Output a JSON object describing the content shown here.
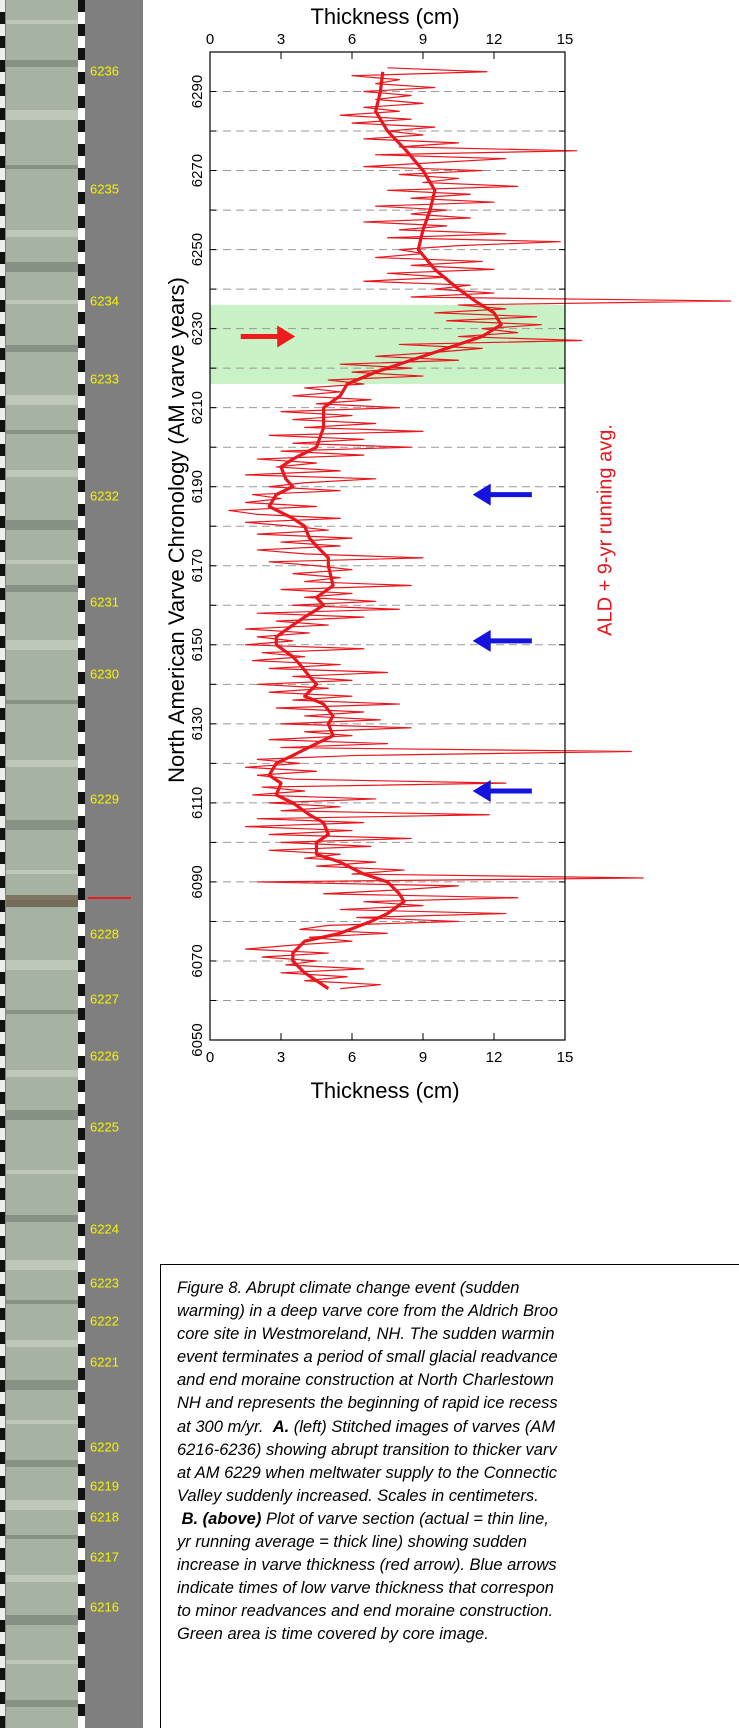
{
  "chart_data": {
    "type": "line",
    "title_top": "Thickness (cm)",
    "xlabel": "Thickness (cm)",
    "ylabel": "North American Varve Chronology (AM varve years)",
    "legend_text": "ALD + 9-yr running avg.",
    "xlim": [
      0,
      15
    ],
    "xticks": [
      0,
      3,
      6,
      9,
      12,
      15
    ],
    "ylim": [
      6050,
      6300
    ],
    "yticks": [
      6050,
      6070,
      6090,
      6110,
      6130,
      6150,
      6170,
      6190,
      6210,
      6230,
      6250,
      6270,
      6290
    ],
    "y_minor_ticks": [
      6060,
      6080,
      6100,
      6120,
      6140,
      6160,
      6180,
      6200,
      6220,
      6240,
      6260,
      6280
    ],
    "grid": true,
    "shaded_range": {
      "years": [
        6216,
        6236
      ],
      "color": "#c9f3c6"
    },
    "arrows": [
      {
        "year": 6228,
        "from": 1.3,
        "to": 3.6,
        "color": "#ee1c1c"
      },
      {
        "year": 6188,
        "from": 13.6,
        "to": 11.1,
        "color": "#1414dc"
      },
      {
        "year": 6151,
        "from": 13.6,
        "to": 11.1,
        "color": "#1414dc"
      },
      {
        "year": 6113,
        "from": 13.6,
        "to": 11.1,
        "color": "#1414dc"
      }
    ],
    "series": [
      {
        "color": "#e8171e",
        "line_width": 1.2,
        "years": [
          6063,
          6064,
          6065,
          6066,
          6067,
          6068,
          6069,
          6070,
          6071,
          6072,
          6073,
          6074,
          6075,
          6076,
          6077,
          6078,
          6079,
          6080,
          6081,
          6082,
          6083,
          6084,
          6085,
          6086,
          6087,
          6088,
          6089,
          6090,
          6091,
          6092,
          6093,
          6094,
          6095,
          6096,
          6097,
          6098,
          6099,
          6100,
          6101,
          6102,
          6103,
          6104,
          6105,
          6106,
          6107,
          6108,
          6109,
          6110,
          6111,
          6112,
          6113,
          6114,
          6115,
          6116,
          6117,
          6118,
          6119,
          6120,
          6121,
          6122,
          6123,
          6124,
          6125,
          6126,
          6127,
          6128,
          6129,
          6130,
          6131,
          6132,
          6133,
          6134,
          6135,
          6136,
          6137,
          6138,
          6139,
          6140,
          6141,
          6142,
          6143,
          6144,
          6145,
          6146,
          6147,
          6148,
          6149,
          6150,
          6151,
          6152,
          6153,
          6154,
          6155,
          6156,
          6157,
          6158,
          6159,
          6160,
          6161,
          6162,
          6163,
          6164,
          6165,
          6166,
          6167,
          6168,
          6169,
          6170,
          6171,
          6172,
          6173,
          6174,
          6175,
          6176,
          6177,
          6178,
          6179,
          6180,
          6181,
          6182,
          6183,
          6184,
          6185,
          6186,
          6187,
          6188,
          6189,
          6190,
          6191,
          6192,
          6193,
          6194,
          6195,
          6196,
          6197,
          6198,
          6199,
          6200,
          6201,
          6202,
          6203,
          6204,
          6205,
          6206,
          6207,
          6208,
          6209,
          6210,
          6211,
          6212,
          6213,
          6214,
          6215,
          6216,
          6217,
          6218,
          6219,
          6220,
          6221,
          6222,
          6223,
          6224,
          6225,
          6226,
          6227,
          6228,
          6229,
          6230,
          6231,
          6232,
          6233,
          6234,
          6235,
          6236,
          6237,
          6238,
          6239,
          6240,
          6241,
          6242,
          6243,
          6244,
          6245,
          6246,
          6247,
          6248,
          6249,
          6250,
          6251,
          6252,
          6253,
          6254,
          6255,
          6256,
          6257,
          6258,
          6259,
          6260,
          6261,
          6262,
          6263,
          6264,
          6265,
          6266,
          6267,
          6268,
          6269,
          6270,
          6271,
          6272,
          6273,
          6274,
          6275,
          6276,
          6277,
          6278,
          6279,
          6280,
          6281,
          6282,
          6283,
          6284,
          6285,
          6286,
          6287,
          6288,
          6289,
          6290,
          6291,
          6292,
          6293,
          6294,
          6295,
          6296
        ],
        "values": [
          5.5,
          7.2,
          4.0,
          5.8,
          3.0,
          6.5,
          3.2,
          4.5,
          2.2,
          5.0,
          1.5,
          3.5,
          6.0,
          4.2,
          7.5,
          3.8,
          5.0,
          10.5,
          6.2,
          12.5,
          5.5,
          9.0,
          6.5,
          13.0,
          4.8,
          8.0,
          10.5,
          2.0,
          18.3,
          6.0,
          8.2,
          4.5,
          7.0,
          4.0,
          5.5,
          2.5,
          6.8,
          3.0,
          8.5,
          2.5,
          6.0,
          1.5,
          6.5,
          2.0,
          11.8,
          3.0,
          5.5,
          2.5,
          7.0,
          1.8,
          4.0,
          2.2,
          12.5,
          3.5,
          2.0,
          4.5,
          1.5,
          3.8,
          2.0,
          6.2,
          17.8,
          3.0,
          7.5,
          2.5,
          6.0,
          4.0,
          8.5,
          3.0,
          7.2,
          4.0,
          6.5,
          2.8,
          8.0,
          3.5,
          6.0,
          2.5,
          5.0,
          2.0,
          6.0,
          3.5,
          7.5,
          2.5,
          5.5,
          1.8,
          4.0,
          2.2,
          6.5,
          1.5,
          3.5,
          2.0,
          4.2,
          1.5,
          5.0,
          2.8,
          6.5,
          2.0,
          8.0,
          3.5,
          7.0,
          4.0,
          6.0,
          3.0,
          8.5,
          4.0,
          5.5,
          3.5,
          6.0,
          4.5,
          2.5,
          9.0,
          4.0,
          2.0,
          5.5,
          3.0,
          6.0,
          2.0,
          5.0,
          3.5,
          1.5,
          5.5,
          2.0,
          0.8,
          4.5,
          1.5,
          3.0,
          1.8,
          5.5,
          2.5,
          4.0,
          7.0,
          1.5,
          5.5,
          2.8,
          4.5,
          2.0,
          6.5,
          3.0,
          8.5,
          3.5,
          6.5,
          2.5,
          9.0,
          4.0,
          7.0,
          3.5,
          6.0,
          3.0,
          8.0,
          4.5,
          6.8,
          3.5,
          5.5,
          4.0,
          6.5,
          5.0,
          9.0,
          6.0,
          8.5,
          5.5,
          10.5,
          7.0,
          9.5,
          11.5,
          8.0,
          15.7,
          10.5,
          13.0,
          11.5,
          14.0,
          10.0,
          13.8,
          9.5,
          12.5,
          10.5,
          22.0,
          8.5,
          12.0,
          9.5,
          11.0,
          6.5,
          10.0,
          7.5,
          12.0,
          8.5,
          11.5,
          7.0,
          9.0,
          8.0,
          10.5,
          14.8,
          7.5,
          12.5,
          8.0,
          10.0,
          6.5,
          11.0,
          8.5,
          10.0,
          7.0,
          12.0,
          8.5,
          11.0,
          7.5,
          13.0,
          9.0,
          10.5,
          8.0,
          11.5,
          6.5,
          9.5,
          12.5,
          7.0,
          15.5,
          8.0,
          10.5,
          6.5,
          9.0,
          7.5,
          9.5,
          6.0,
          8.5,
          5.5,
          8.0,
          6.5,
          9.0,
          7.0,
          8.5,
          6.5,
          9.5,
          7.0,
          8.0,
          6.0,
          11.7,
          7.5
        ]
      },
      {
        "color": "#e8171e",
        "line_width": 3.2,
        "years": [
          6063,
          6065,
          6067,
          6070,
          6072,
          6075,
          6077,
          6080,
          6082,
          6085,
          6087,
          6090,
          6092,
          6095,
          6097,
          6100,
          6102,
          6105,
          6107,
          6110,
          6112,
          6115,
          6117,
          6120,
          6122,
          6125,
          6127,
          6130,
          6132,
          6135,
          6137,
          6140,
          6142,
          6145,
          6147,
          6150,
          6152,
          6155,
          6157,
          6160,
          6162,
          6165,
          6170,
          6172,
          6175,
          6177,
          6180,
          6182,
          6185,
          6188,
          6190,
          6192,
          6195,
          6197,
          6200,
          6205,
          6210,
          6213,
          6216,
          6219,
          6222,
          6225,
          6228,
          6231,
          6234,
          6237,
          6240,
          6245,
          6250,
          6255,
          6260,
          6265,
          6270,
          6275,
          6280,
          6285,
          6290,
          6295
        ],
        "values": [
          5.0,
          4.5,
          4.0,
          3.5,
          3.5,
          4.0,
          5.5,
          6.8,
          7.5,
          8.2,
          8.0,
          7.5,
          6.5,
          5.5,
          4.5,
          4.5,
          5.0,
          4.8,
          4.2,
          3.5,
          2.8,
          3.0,
          2.5,
          2.8,
          3.5,
          4.5,
          5.2,
          5.0,
          5.2,
          4.8,
          4.0,
          4.5,
          4.2,
          3.8,
          3.5,
          2.8,
          2.8,
          3.5,
          4.0,
          4.8,
          4.5,
          5.2,
          5.0,
          5.0,
          4.5,
          4.2,
          4.0,
          3.5,
          2.5,
          2.8,
          3.5,
          3.2,
          3.0,
          3.5,
          4.5,
          4.8,
          4.8,
          5.5,
          5.8,
          7.0,
          8.5,
          10.0,
          11.5,
          12.3,
          12.0,
          11.2,
          10.5,
          9.5,
          8.8,
          9.0,
          9.3,
          9.5,
          9.0,
          8.3,
          7.5,
          7.0,
          7.2,
          7.3
        ]
      }
    ]
  },
  "core": {
    "labels": [
      "6236",
      "6235",
      "6234",
      "6233",
      "6232",
      "6231",
      "6230",
      "6229",
      "6228",
      "6227",
      "6226",
      "6225",
      "6224",
      "6223",
      "6222",
      "6221",
      "6220",
      "6219",
      "6218",
      "6217",
      "6216"
    ]
  },
  "caption": {
    "lines": [
      [
        "Figure 8. Abrupt climate change event (sudden"
      ],
      [
        "warming) in a deep varve core from the Aldrich Broo"
      ],
      [
        "core site in Westmoreland, NH. The sudden warmin"
      ],
      [
        "event terminates a period of small glacial readvance"
      ],
      [
        "and end moraine construction at North Charlestown"
      ],
      [
        "NH and represents the beginning of rapid ice recess"
      ],
      [
        "at 300 m/yr.  ",
        {
          "text": "A.",
          "bold": true
        },
        " (left) Stitched images of varves (AM"
      ],
      [
        "6216-6236) showing abrupt transition to thicker varv"
      ],
      [
        "at AM 6229 when meltwater supply to the Connectic"
      ],
      [
        "Valley suddenly increased. Scales in centimeters."
      ],
      [
        {
          "text": " B. (above)",
          "bold": true
        },
        " Plot of varve section (actual = thin line,"
      ],
      [
        "yr running average = thick line) showing sudden"
      ],
      [
        "increase in varve thickness (red arrow). Blue arrows"
      ],
      [
        "indicate times of low varve thickness that correspon"
      ],
      [
        "to minor readvances and end moraine construction."
      ],
      [
        "Green area is time covered by core image."
      ]
    ]
  }
}
